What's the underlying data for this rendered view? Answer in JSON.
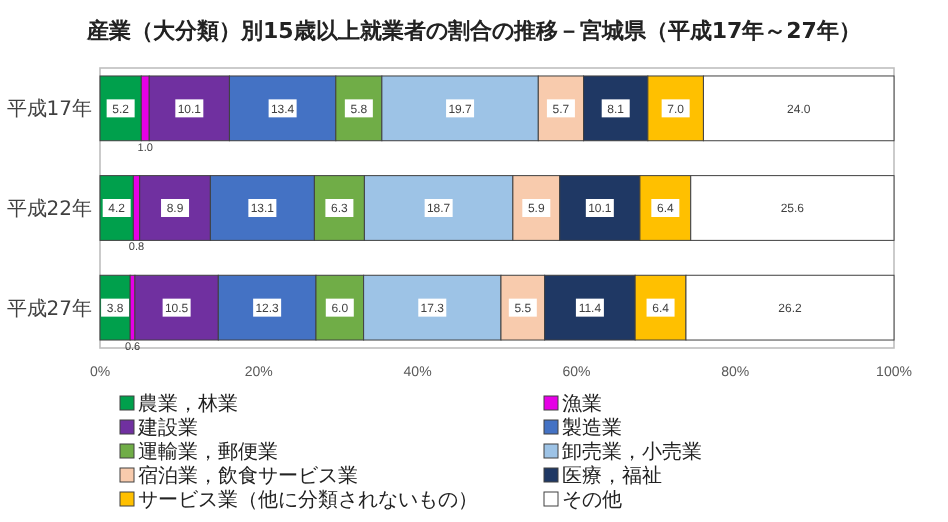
{
  "chart_data": {
    "type": "bar",
    "orientation": "horizontal",
    "stacked": true,
    "title": "産業（大分類）別15歳以上就業者の割合の推移－宮城県（平成17年～27年）",
    "categories": [
      "平成17年",
      "平成22年",
      "平成27年"
    ],
    "series": [
      {
        "name": "農業，林業",
        "color": "#00a04c",
        "values": [
          5.2,
          4.2,
          3.8
        ],
        "value_labels": [
          "5.2",
          "4.2",
          "3.8"
        ]
      },
      {
        "name": "漁業",
        "color": "#e600e6",
        "values": [
          1.0,
          0.8,
          0.6
        ],
        "value_labels": [
          "1.0",
          "0.8",
          "0.6"
        ]
      },
      {
        "name": "建設業",
        "color": "#7030a0",
        "values": [
          10.1,
          8.9,
          10.5
        ],
        "value_labels": [
          "10.1",
          "8.9",
          "10.5"
        ]
      },
      {
        "name": "製造業",
        "color": "#4472c4",
        "values": [
          13.4,
          13.1,
          12.3
        ],
        "value_labels": [
          "13.4",
          "13.1",
          "12.3"
        ]
      },
      {
        "name": "運輸業，郵便業",
        "color": "#70ad47",
        "values": [
          5.8,
          6.3,
          6.0
        ],
        "value_labels": [
          "5.8",
          "6.3",
          "6.0"
        ]
      },
      {
        "name": "卸売業，小売業",
        "color": "#9dc3e6",
        "values": [
          19.7,
          18.7,
          17.3
        ],
        "value_labels": [
          "19.7",
          "18.7",
          "17.3"
        ]
      },
      {
        "name": "宿泊業，飲食サービス業",
        "color": "#f8cbad",
        "values": [
          5.7,
          5.9,
          5.5
        ],
        "value_labels": [
          "5.7",
          "5.9",
          "5.5"
        ]
      },
      {
        "name": "医療，福祉",
        "color": "#1f3864",
        "values": [
          8.1,
          10.1,
          11.4
        ],
        "value_labels": [
          "8.1",
          "10.1",
          "11.4"
        ]
      },
      {
        "name": "サービス業（他に分類されないもの）",
        "color": "#ffc000",
        "values": [
          7.0,
          6.4,
          6.4
        ],
        "value_labels": [
          "7.0",
          "6.4",
          "6.4"
        ]
      },
      {
        "name": "その他",
        "color": "#ffffff",
        "values": [
          24.0,
          25.6,
          26.2
        ],
        "value_labels": [
          "24.0",
          "25.6",
          "26.2"
        ]
      }
    ],
    "xlim": [
      0,
      100
    ],
    "xticks": [
      {
        "value": 0,
        "label": "0%"
      },
      {
        "value": 20,
        "label": "20%"
      },
      {
        "value": 40,
        "label": "40%"
      },
      {
        "value": 60,
        "label": "60%"
      },
      {
        "value": 80,
        "label": "80%"
      },
      {
        "value": 100,
        "label": "100%"
      }
    ],
    "legend": "bottom",
    "grid": false
  }
}
